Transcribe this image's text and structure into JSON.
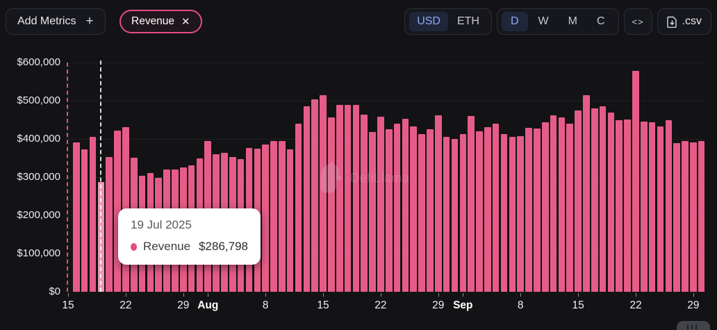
{
  "toolbar": {
    "add_metrics": {
      "label": "Add Metrics",
      "plus_icon": "+"
    },
    "metric_pill": {
      "label": "Revenue",
      "close_icon": "✕"
    },
    "currency_toggle": {
      "options": [
        "USD",
        "ETH"
      ],
      "selected": "USD"
    },
    "interval_toggle": {
      "options": [
        "D",
        "W",
        "M",
        "C"
      ],
      "selected": "D"
    },
    "embed_button": {
      "icon": "code-brackets-icon",
      "glyph": "<>"
    },
    "csv_button": {
      "icon": "file-download-icon",
      "label": ".csv"
    }
  },
  "chart": {
    "watermark": "DefiLlama",
    "tooltip": {
      "date": "19 Jul 2025",
      "series_label": "Revenue",
      "value": "$286,798"
    },
    "y_axis_labels": [
      "$600,000",
      "$500,000",
      "$400,000",
      "$300,000",
      "$200,000",
      "$100,000",
      "$0"
    ],
    "x_ticks": [
      {
        "label": "15",
        "day": 0,
        "bold": false
      },
      {
        "label": "22",
        "day": 7,
        "bold": false
      },
      {
        "label": "29",
        "day": 14,
        "bold": false
      },
      {
        "label": "Aug",
        "day": 17,
        "bold": true
      },
      {
        "label": "8",
        "day": 24,
        "bold": false
      },
      {
        "label": "15",
        "day": 31,
        "bold": false
      },
      {
        "label": "22",
        "day": 38,
        "bold": false
      },
      {
        "label": "29",
        "day": 45,
        "bold": false
      },
      {
        "label": "Sep",
        "day": 48,
        "bold": true
      },
      {
        "label": "8",
        "day": 55,
        "bold": false
      },
      {
        "label": "15",
        "day": 62,
        "bold": false
      },
      {
        "label": "22",
        "day": 69,
        "bold": false
      },
      {
        "label": "29",
        "day": 76,
        "bold": false
      }
    ]
  },
  "chart_data": {
    "type": "bar",
    "title": "Revenue",
    "currency": "USD",
    "interval": "daily",
    "ylim": [
      0,
      600000
    ],
    "y_tick_step": 100000,
    "grid": "horizontal-faint",
    "bar_color": "#e65c88",
    "selected_bar_color": "#ef94b1",
    "accent_pink": "#e64d80",
    "accent_blue": "#90a9f4",
    "selected_index": 3,
    "selected_point": {
      "date": "2025-07-19",
      "value": 286798
    },
    "x": [
      "2025-07-16",
      "2025-07-17",
      "2025-07-18",
      "2025-07-19",
      "2025-07-20",
      "2025-07-21",
      "2025-07-22",
      "2025-07-23",
      "2025-07-24",
      "2025-07-25",
      "2025-07-26",
      "2025-07-27",
      "2025-07-28",
      "2025-07-29",
      "2025-07-30",
      "2025-07-31",
      "2025-08-01",
      "2025-08-02",
      "2025-08-03",
      "2025-08-04",
      "2025-08-05",
      "2025-08-06",
      "2025-08-07",
      "2025-08-08",
      "2025-08-09",
      "2025-08-10",
      "2025-08-11",
      "2025-08-12",
      "2025-08-13",
      "2025-08-14",
      "2025-08-15",
      "2025-08-16",
      "2025-08-17",
      "2025-08-18",
      "2025-08-19",
      "2025-08-20",
      "2025-08-21",
      "2025-08-22",
      "2025-08-23",
      "2025-08-24",
      "2025-08-25",
      "2025-08-26",
      "2025-08-27",
      "2025-08-28",
      "2025-08-29",
      "2025-08-30",
      "2025-08-31",
      "2025-09-01",
      "2025-09-02",
      "2025-09-03",
      "2025-09-04",
      "2025-09-05",
      "2025-09-06",
      "2025-09-07",
      "2025-09-08",
      "2025-09-09",
      "2025-09-10",
      "2025-09-11",
      "2025-09-12",
      "2025-09-13",
      "2025-09-14",
      "2025-09-15",
      "2025-09-16",
      "2025-09-17",
      "2025-09-18",
      "2025-09-19",
      "2025-09-20",
      "2025-09-21",
      "2025-09-22",
      "2025-09-23",
      "2025-09-24",
      "2025-09-25",
      "2025-09-26",
      "2025-09-27",
      "2025-09-28",
      "2025-09-29",
      "2025-09-30"
    ],
    "values": [
      391000,
      373000,
      406000,
      286798,
      353000,
      422000,
      431000,
      351000,
      304000,
      311000,
      298000,
      320000,
      320000,
      326000,
      331000,
      349000,
      395000,
      360000,
      364000,
      353000,
      347000,
      376000,
      374000,
      385000,
      395000,
      394000,
      373000,
      440000,
      486000,
      504000,
      515000,
      456000,
      489000,
      489000,
      489000,
      464000,
      418000,
      458000,
      425000,
      440000,
      453000,
      433000,
      413000,
      425000,
      462000,
      405000,
      400000,
      412000,
      460000,
      420000,
      431000,
      440000,
      413000,
      406000,
      407000,
      430000,
      427000,
      444000,
      462000,
      456000,
      440000,
      474000,
      514000,
      480000,
      486000,
      470000,
      450000,
      451000,
      578000,
      446000,
      444000,
      433000,
      450000,
      389000,
      395000,
      391000,
      395000
    ]
  }
}
